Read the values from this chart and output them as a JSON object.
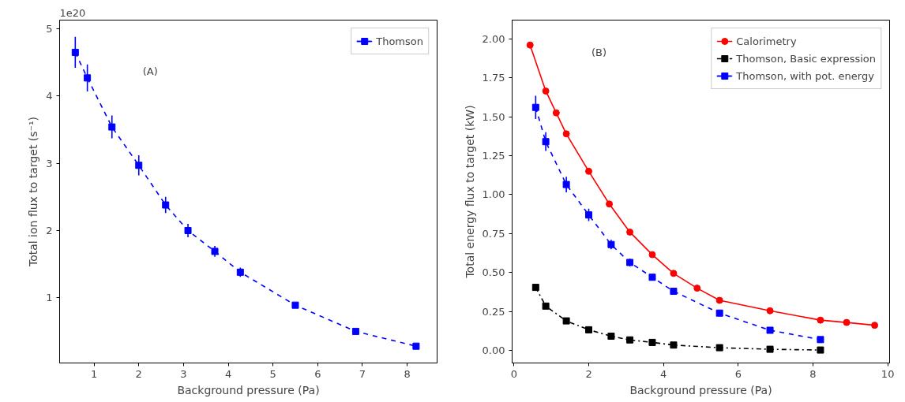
{
  "chart_data": [
    {
      "type": "line",
      "xlabel": "Background pressure (Pa)",
      "ylabel": "Total ion flux to target (s⁻¹)",
      "xlim": [
        0.23,
        8.67
      ],
      "ylim": [
        0.03,
        5.13
      ],
      "xticks": [
        1,
        2,
        3,
        4,
        5,
        6,
        7,
        8
      ],
      "yticks": [
        1,
        2,
        3,
        4,
        5
      ],
      "grid": false,
      "legend": "top right",
      "annotations": [
        "1e20",
        "(A)"
      ],
      "series": [
        {
          "name": "Thomson",
          "color": "#0000ff",
          "marker": "square",
          "line_style": "dashed",
          "x": [
            0.58,
            0.85,
            1.4,
            2.0,
            2.6,
            3.1,
            3.7,
            4.27,
            5.5,
            6.85,
            8.2
          ],
          "values": [
            4.65,
            4.27,
            3.54,
            2.97,
            2.38,
            2.0,
            1.69,
            1.38,
            0.89,
            0.5,
            0.28
          ],
          "errors": [
            0.23,
            0.2,
            0.17,
            0.15,
            0.12,
            0.1,
            0.08,
            0.07,
            0.04,
            0.03,
            0.02
          ]
        }
      ]
    },
    {
      "type": "line",
      "xlabel": "Background pressure (Pa)",
      "ylabel": "Total energy flux to target (kW)",
      "xlim": [
        -0.05,
        10.05
      ],
      "ylim": [
        -0.08,
        2.12
      ],
      "xticks": [
        0,
        2,
        4,
        6,
        8,
        10
      ],
      "yticks": [
        {
          "value": 0,
          "label": "0.00"
        },
        0.25,
        {
          "value": 0.5,
          "label": "0.50"
        },
        0.75,
        {
          "value": 1,
          "label": "1.00"
        },
        1.25,
        {
          "value": 1.5,
          "label": "1.50"
        },
        1.75,
        {
          "value": 2,
          "label": "2.00"
        }
      ],
      "grid": false,
      "legend": "top right",
      "annotations": [
        "(B)"
      ],
      "series": [
        {
          "name": "Calorimetry",
          "color": "#ff0000",
          "marker": "circle",
          "line_style": "solid",
          "x": [
            0.43,
            0.85,
            1.13,
            1.4,
            2.0,
            2.55,
            3.1,
            3.7,
            4.27,
            4.9,
            5.5,
            6.85,
            8.2,
            8.9,
            9.65
          ],
          "values": [
            1.96,
            1.665,
            1.525,
            1.39,
            1.15,
            0.94,
            0.76,
            0.615,
            0.495,
            0.4,
            0.322,
            0.255,
            0.195,
            0.18,
            0.162
          ]
        },
        {
          "name": "Thomson, Basic expression",
          "color": "#000000",
          "marker": "square",
          "line_style": "dashdot",
          "x": [
            0.58,
            0.85,
            1.4,
            2.0,
            2.6,
            3.1,
            3.7,
            4.27,
            5.5,
            6.85,
            8.2
          ],
          "values": [
            0.405,
            0.285,
            0.19,
            0.133,
            0.092,
            0.068,
            0.052,
            0.035,
            0.018,
            0.008,
            0.003
          ]
        },
        {
          "name": "Thomson, with pot. energy",
          "color": "#0000ff",
          "marker": "square",
          "line_style": "dashed",
          "x": [
            0.58,
            0.85,
            1.4,
            2.0,
            2.6,
            3.1,
            3.7,
            4.27,
            5.5,
            6.85,
            8.2
          ],
          "values": [
            1.56,
            1.34,
            1.065,
            0.87,
            0.68,
            0.565,
            0.47,
            0.38,
            0.24,
            0.13,
            0.07
          ],
          "errors": [
            0.075,
            0.06,
            0.05,
            0.04,
            0.03,
            0.025,
            0.02,
            0.015,
            null,
            null,
            null
          ]
        }
      ]
    }
  ]
}
